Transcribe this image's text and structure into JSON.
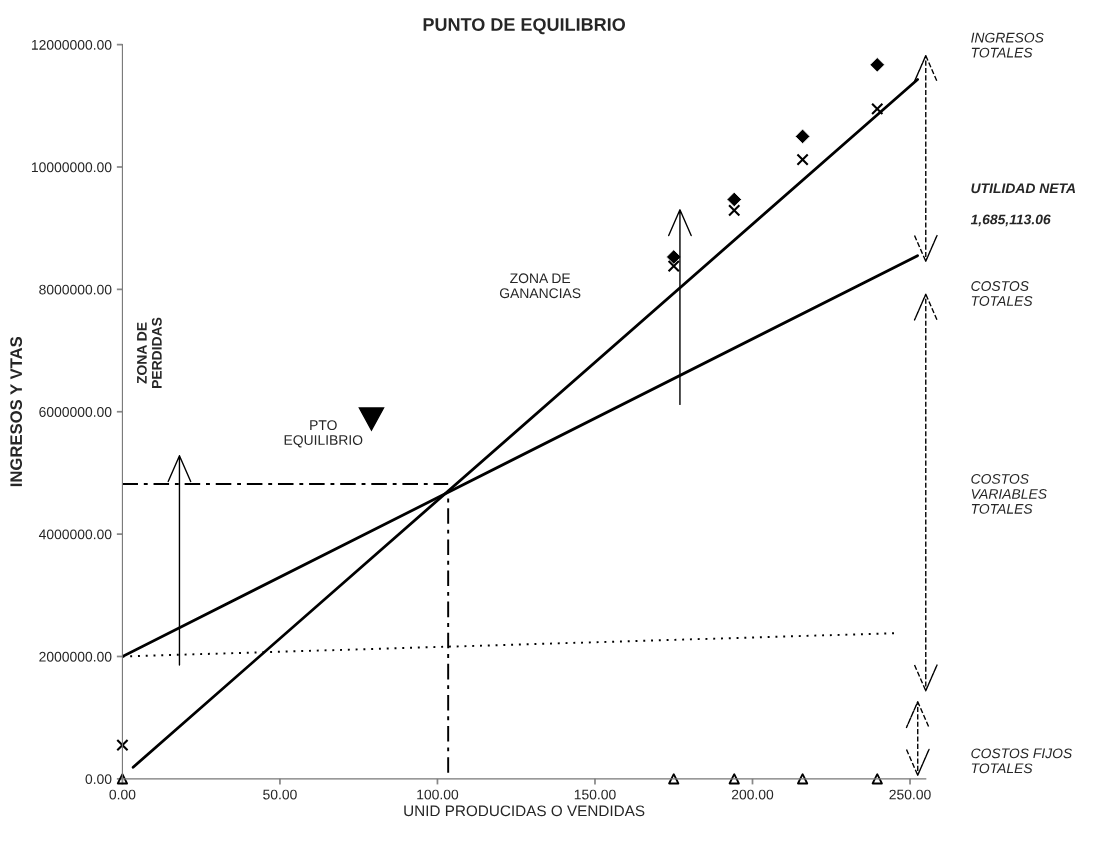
{
  "chart_data": {
    "type": "line",
    "title": "PUNTO DE EQUILIBRIO",
    "xlabel": "UNID PRODUCIDAS O VENDIDAS",
    "ylabel": "INGRESOS Y VTAS",
    "xlim": [
      0,
      255
    ],
    "ylim": [
      0,
      12000000
    ],
    "xticks": [
      {
        "value": 0,
        "label": "0.00"
      },
      {
        "value": 50,
        "label": "50.00"
      },
      {
        "value": 100,
        "label": "100.00"
      },
      {
        "value": 150,
        "label": "150.00"
      },
      {
        "value": 200,
        "label": "200.00"
      },
      {
        "value": 250,
        "label": "250.00"
      }
    ],
    "yticks": [
      {
        "value": 0,
        "label": "0.00"
      },
      {
        "value": 2000000,
        "label": "2000000.00"
      },
      {
        "value": 4000000,
        "label": "4000000.00"
      },
      {
        "value": 6000000,
        "label": "6000000.00"
      },
      {
        "value": 8000000,
        "label": "8000000.00"
      },
      {
        "value": 10000000,
        "label": "10000000.00"
      },
      {
        "value": 12000000,
        "label": "12000000.00"
      }
    ],
    "grid": false,
    "legend": false,
    "series": [
      {
        "type": "line",
        "color": "#000000",
        "line_style": "solid",
        "marker": "none",
        "x": [
          3.4,
          252.4
        ],
        "values": [
          190000,
          11430000
        ]
      },
      {
        "type": "line",
        "color": "#000000",
        "line_style": "solid",
        "marker": "none",
        "x": [
          0,
          252.4
        ],
        "values": [
          2000000,
          8550000
        ]
      },
      {
        "type": "line",
        "color": "#000000",
        "line_style": "dotted",
        "marker": "none",
        "x": [
          0,
          245
        ],
        "values": [
          2000000,
          2380000
        ]
      },
      {
        "type": "line",
        "color": "#000000",
        "line_style": "dashed",
        "marker": "none",
        "x": [
          0,
          103.4
        ],
        "values": [
          4820000,
          4820000
        ]
      },
      {
        "type": "line",
        "color": "#000000",
        "line_style": "dashed",
        "marker": "none",
        "x": [
          103.4,
          103.4
        ],
        "values": [
          100000,
          4680000
        ]
      },
      {
        "type": "scatter",
        "color": "#000000",
        "marker": "diamond",
        "x": [
          175,
          194.2,
          215.9,
          239.6
        ],
        "values": [
          8530000,
          9470000,
          10500000,
          11670000
        ]
      },
      {
        "type": "scatter",
        "color": "#000000",
        "marker": "cross",
        "x": [
          0,
          175,
          194.2,
          215.9,
          239.6
        ],
        "values": [
          550000,
          8380000,
          9290000,
          10120000,
          10950000
        ]
      },
      {
        "type": "scatter",
        "color": "#000000",
        "marker": "triangle",
        "x": [
          0,
          175,
          194.2,
          215.9,
          239.6
        ],
        "values": [
          0,
          0,
          0,
          0,
          0
        ]
      }
    ],
    "annotations": [
      "INGRESOS\nTOTALES",
      "UTILIDAD NETA",
      "1,685,113.06",
      "COSTOS\nTOTALES",
      "COSTOS\nVARIABLES\nTOTALES",
      "COSTOS FIJOS\nTOTALES",
      "ZONA DE\nGANANCIAS",
      "ZONA DE\nPERDIDAS",
      "PTO\nEQUILIBRIO"
    ]
  }
}
